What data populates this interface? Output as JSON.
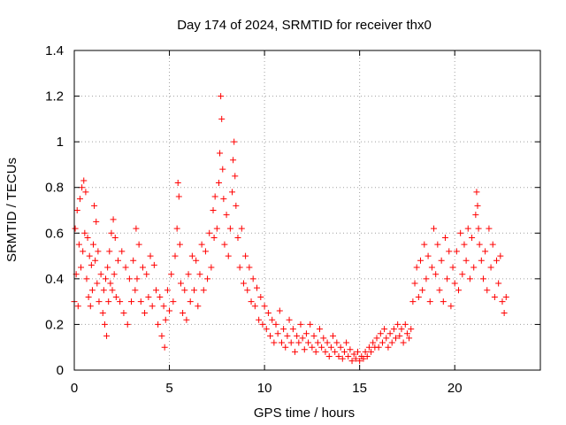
{
  "chart_data": {
    "type": "scatter",
    "title": "Day 174 of 2024, SRMTID for receiver thx0",
    "xlabel": "GPS time / hours",
    "ylabel": "SRMTID / TECUs",
    "xlim": [
      0,
      24.5
    ],
    "ylim": [
      0,
      1.4
    ],
    "xticks": [
      0,
      5,
      10,
      15,
      20
    ],
    "xtick_labels": [
      "0",
      "5",
      "10",
      "15",
      "20"
    ],
    "yticks": [
      0,
      0.2,
      0.4,
      0.6,
      0.8,
      1.0,
      1.2,
      1.4
    ],
    "ytick_labels": [
      "0",
      "0.2",
      "0.4",
      "0.6",
      "0.8",
      "1",
      "1.2",
      "1.4"
    ],
    "grid": true,
    "marker": "+",
    "marker_color": "#ff0000",
    "series": [
      {
        "name": "SRMTID",
        "points": [
          [
            0.0,
            0.3
          ],
          [
            0.05,
            0.62
          ],
          [
            0.1,
            0.42
          ],
          [
            0.15,
            0.7
          ],
          [
            0.2,
            0.28
          ],
          [
            0.25,
            0.55
          ],
          [
            0.3,
            0.75
          ],
          [
            0.35,
            0.45
          ],
          [
            0.4,
            0.8
          ],
          [
            0.45,
            0.52
          ],
          [
            0.5,
            0.83
          ],
          [
            0.55,
            0.6
          ],
          [
            0.6,
            0.78
          ],
          [
            0.65,
            0.4
          ],
          [
            0.7,
            0.58
          ],
          [
            0.75,
            0.32
          ],
          [
            0.8,
            0.5
          ],
          [
            0.85,
            0.28
          ],
          [
            0.9,
            0.46
          ],
          [
            0.95,
            0.35
          ],
          [
            1.0,
            0.55
          ],
          [
            1.05,
            0.72
          ],
          [
            1.1,
            0.48
          ],
          [
            1.15,
            0.65
          ],
          [
            1.2,
            0.38
          ],
          [
            1.25,
            0.52
          ],
          [
            1.3,
            0.3
          ],
          [
            1.4,
            0.42
          ],
          [
            1.5,
            0.25
          ],
          [
            1.55,
            0.35
          ],
          [
            1.6,
            0.2
          ],
          [
            1.65,
            0.4
          ],
          [
            1.7,
            0.15
          ],
          [
            1.75,
            0.45
          ],
          [
            1.8,
            0.3
          ],
          [
            1.85,
            0.52
          ],
          [
            1.9,
            0.38
          ],
          [
            1.95,
            0.6
          ],
          [
            2.0,
            0.35
          ],
          [
            2.05,
            0.66
          ],
          [
            2.1,
            0.42
          ],
          [
            2.15,
            0.58
          ],
          [
            2.2,
            0.32
          ],
          [
            2.3,
            0.48
          ],
          [
            2.4,
            0.3
          ],
          [
            2.5,
            0.52
          ],
          [
            2.6,
            0.25
          ],
          [
            2.7,
            0.45
          ],
          [
            2.8,
            0.2
          ],
          [
            2.9,
            0.4
          ],
          [
            3.0,
            0.3
          ],
          [
            3.1,
            0.48
          ],
          [
            3.2,
            0.35
          ],
          [
            3.25,
            0.62
          ],
          [
            3.3,
            0.4
          ],
          [
            3.4,
            0.55
          ],
          [
            3.5,
            0.3
          ],
          [
            3.6,
            0.45
          ],
          [
            3.7,
            0.25
          ],
          [
            3.8,
            0.42
          ],
          [
            3.9,
            0.32
          ],
          [
            4.0,
            0.5
          ],
          [
            4.1,
            0.28
          ],
          [
            4.2,
            0.46
          ],
          [
            4.3,
            0.35
          ],
          [
            4.4,
            0.2
          ],
          [
            4.5,
            0.32
          ],
          [
            4.6,
            0.15
          ],
          [
            4.7,
            0.28
          ],
          [
            4.75,
            0.1
          ],
          [
            4.8,
            0.22
          ],
          [
            4.9,
            0.35
          ],
          [
            5.0,
            0.26
          ],
          [
            5.1,
            0.42
          ],
          [
            5.2,
            0.3
          ],
          [
            5.3,
            0.5
          ],
          [
            5.4,
            0.62
          ],
          [
            5.45,
            0.82
          ],
          [
            5.5,
            0.76
          ],
          [
            5.55,
            0.55
          ],
          [
            5.6,
            0.38
          ],
          [
            5.7,
            0.25
          ],
          [
            5.8,
            0.35
          ],
          [
            5.9,
            0.22
          ],
          [
            6.0,
            0.42
          ],
          [
            6.1,
            0.3
          ],
          [
            6.2,
            0.5
          ],
          [
            6.3,
            0.35
          ],
          [
            6.4,
            0.48
          ],
          [
            6.5,
            0.28
          ],
          [
            6.6,
            0.42
          ],
          [
            6.7,
            0.55
          ],
          [
            6.8,
            0.35
          ],
          [
            6.9,
            0.52
          ],
          [
            7.0,
            0.4
          ],
          [
            7.1,
            0.6
          ],
          [
            7.2,
            0.45
          ],
          [
            7.3,
            0.7
          ],
          [
            7.35,
            0.58
          ],
          [
            7.4,
            0.76
          ],
          [
            7.5,
            0.62
          ],
          [
            7.6,
            0.82
          ],
          [
            7.65,
            0.95
          ],
          [
            7.7,
            1.2
          ],
          [
            7.75,
            1.1
          ],
          [
            7.8,
            0.88
          ],
          [
            7.85,
            0.75
          ],
          [
            7.9,
            0.55
          ],
          [
            8.0,
            0.68
          ],
          [
            8.1,
            0.5
          ],
          [
            8.2,
            0.62
          ],
          [
            8.3,
            0.78
          ],
          [
            8.35,
            0.92
          ],
          [
            8.4,
            1.0
          ],
          [
            8.45,
            0.85
          ],
          [
            8.5,
            0.72
          ],
          [
            8.6,
            0.58
          ],
          [
            8.7,
            0.45
          ],
          [
            8.8,
            0.62
          ],
          [
            8.9,
            0.38
          ],
          [
            9.0,
            0.5
          ],
          [
            9.1,
            0.35
          ],
          [
            9.2,
            0.45
          ],
          [
            9.3,
            0.3
          ],
          [
            9.4,
            0.4
          ],
          [
            9.5,
            0.28
          ],
          [
            9.6,
            0.36
          ],
          [
            9.7,
            0.22
          ],
          [
            9.8,
            0.32
          ],
          [
            9.9,
            0.2
          ],
          [
            10.0,
            0.28
          ],
          [
            10.1,
            0.18
          ],
          [
            10.2,
            0.25
          ],
          [
            10.3,
            0.15
          ],
          [
            10.4,
            0.22
          ],
          [
            10.5,
            0.12
          ],
          [
            10.6,
            0.2
          ],
          [
            10.7,
            0.16
          ],
          [
            10.8,
            0.26
          ],
          [
            10.9,
            0.12
          ],
          [
            11.0,
            0.18
          ],
          [
            11.1,
            0.1
          ],
          [
            11.2,
            0.15
          ],
          [
            11.3,
            0.22
          ],
          [
            11.4,
            0.12
          ],
          [
            11.5,
            0.18
          ],
          [
            11.6,
            0.08
          ],
          [
            11.7,
            0.15
          ],
          [
            11.8,
            0.12
          ],
          [
            11.9,
            0.2
          ],
          [
            12.0,
            0.14
          ],
          [
            12.1,
            0.09
          ],
          [
            12.2,
            0.16
          ],
          [
            12.3,
            0.12
          ],
          [
            12.4,
            0.2
          ],
          [
            12.5,
            0.1
          ],
          [
            12.6,
            0.15
          ],
          [
            12.7,
            0.08
          ],
          [
            12.8,
            0.12
          ],
          [
            12.9,
            0.18
          ],
          [
            13.0,
            0.1
          ],
          [
            13.1,
            0.14
          ],
          [
            13.2,
            0.08
          ],
          [
            13.3,
            0.12
          ],
          [
            13.4,
            0.06
          ],
          [
            13.5,
            0.1
          ],
          [
            13.6,
            0.15
          ],
          [
            13.7,
            0.08
          ],
          [
            13.8,
            0.12
          ],
          [
            13.9,
            0.06
          ],
          [
            14.0,
            0.1
          ],
          [
            14.1,
            0.05
          ],
          [
            14.2,
            0.08
          ],
          [
            14.3,
            0.12
          ],
          [
            14.4,
            0.06
          ],
          [
            14.5,
            0.09
          ],
          [
            14.6,
            0.04
          ],
          [
            14.7,
            0.07
          ],
          [
            14.8,
            0.05
          ],
          [
            14.9,
            0.08
          ],
          [
            15.0,
            0.04
          ],
          [
            15.1,
            0.06
          ],
          [
            15.2,
            0.05
          ],
          [
            15.3,
            0.08
          ],
          [
            15.4,
            0.06
          ],
          [
            15.5,
            0.1
          ],
          [
            15.6,
            0.08
          ],
          [
            15.7,
            0.12
          ],
          [
            15.8,
            0.1
          ],
          [
            15.9,
            0.14
          ],
          [
            16.0,
            0.1
          ],
          [
            16.1,
            0.16
          ],
          [
            16.2,
            0.12
          ],
          [
            16.3,
            0.18
          ],
          [
            16.4,
            0.14
          ],
          [
            16.5,
            0.1
          ],
          [
            16.6,
            0.16
          ],
          [
            16.7,
            0.12
          ],
          [
            16.8,
            0.18
          ],
          [
            16.9,
            0.14
          ],
          [
            17.0,
            0.2
          ],
          [
            17.1,
            0.15
          ],
          [
            17.2,
            0.18
          ],
          [
            17.3,
            0.12
          ],
          [
            17.4,
            0.2
          ],
          [
            17.5,
            0.16
          ],
          [
            17.6,
            0.14
          ],
          [
            17.7,
            0.18
          ],
          [
            17.8,
            0.3
          ],
          [
            17.9,
            0.38
          ],
          [
            18.0,
            0.45
          ],
          [
            18.1,
            0.32
          ],
          [
            18.2,
            0.48
          ],
          [
            18.3,
            0.35
          ],
          [
            18.4,
            0.55
          ],
          [
            18.5,
            0.4
          ],
          [
            18.6,
            0.5
          ],
          [
            18.7,
            0.3
          ],
          [
            18.8,
            0.45
          ],
          [
            18.9,
            0.62
          ],
          [
            19.0,
            0.42
          ],
          [
            19.1,
            0.55
          ],
          [
            19.2,
            0.35
          ],
          [
            19.3,
            0.48
          ],
          [
            19.4,
            0.3
          ],
          [
            19.5,
            0.58
          ],
          [
            19.6,
            0.4
          ],
          [
            19.7,
            0.52
          ],
          [
            19.8,
            0.28
          ],
          [
            19.9,
            0.45
          ],
          [
            20.0,
            0.38
          ],
          [
            20.1,
            0.52
          ],
          [
            20.2,
            0.35
          ],
          [
            20.3,
            0.6
          ],
          [
            20.4,
            0.42
          ],
          [
            20.5,
            0.55
          ],
          [
            20.6,
            0.48
          ],
          [
            20.7,
            0.62
          ],
          [
            20.8,
            0.4
          ],
          [
            20.9,
            0.58
          ],
          [
            21.0,
            0.45
          ],
          [
            21.1,
            0.68
          ],
          [
            21.15,
            0.78
          ],
          [
            21.2,
            0.72
          ],
          [
            21.25,
            0.62
          ],
          [
            21.3,
            0.55
          ],
          [
            21.4,
            0.48
          ],
          [
            21.5,
            0.4
          ],
          [
            21.6,
            0.52
          ],
          [
            21.7,
            0.35
          ],
          [
            21.8,
            0.62
          ],
          [
            21.9,
            0.45
          ],
          [
            22.0,
            0.55
          ],
          [
            22.1,
            0.32
          ],
          [
            22.2,
            0.48
          ],
          [
            22.3,
            0.38
          ],
          [
            22.4,
            0.5
          ],
          [
            22.5,
            0.3
          ],
          [
            22.6,
            0.25
          ],
          [
            22.7,
            0.32
          ]
        ]
      }
    ]
  }
}
